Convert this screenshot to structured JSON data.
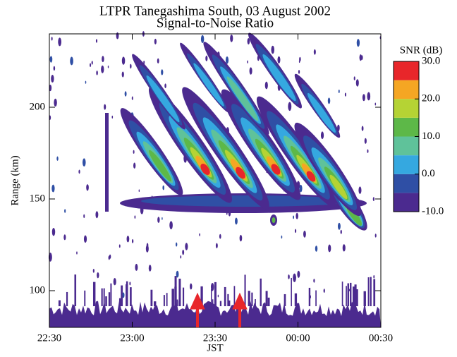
{
  "chart_data": {
    "type": "contour",
    "title": "LTPR Tanegashima South, 03 August 2002",
    "subtitle": "Signal-to-Noise Ratio",
    "x_label": "JST",
    "y_label": "Range (km)",
    "xlim": [
      22.5,
      24.5
    ],
    "xticks": [
      {
        "value": 22.5,
        "label": "22:30"
      },
      {
        "value": 23,
        "label": "23:00"
      },
      {
        "value": 23.5,
        "label": "23:30"
      },
      {
        "value": 24,
        "label": "00:00"
      },
      {
        "value": 24.5,
        "label": "00:30"
      }
    ],
    "ylim": [
      80,
      240
    ],
    "yticks": [
      100,
      150,
      200
    ],
    "colorbar": {
      "label": "SNR (dB)",
      "levels": [
        -10,
        -5,
        0,
        5,
        10,
        15,
        20,
        25,
        30
      ],
      "colors": [
        "#4b2a8f",
        "#2f4fa5",
        "#35a8e0",
        "#5fc29a",
        "#5db848",
        "#b5d334",
        "#f5a623",
        "#e8262a"
      ],
      "ticks": [
        {
          "value": 30,
          "label": "30.0"
        },
        {
          "value": 20,
          "label": "20.0"
        },
        {
          "value": 10,
          "label": "10.0"
        },
        {
          "value": 0,
          "label": "0.0"
        },
        {
          "value": -10,
          "label": "-10.0"
        }
      ]
    }
  }
}
